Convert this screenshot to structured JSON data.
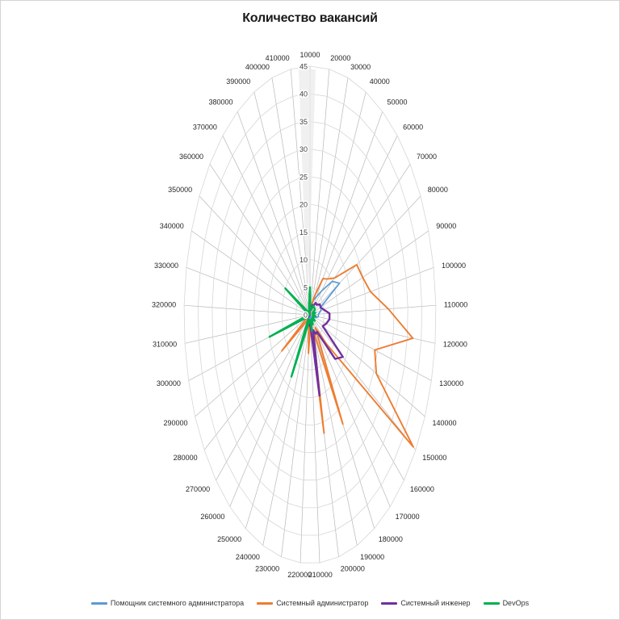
{
  "window": {
    "background": "#FFFFFF",
    "border_color": "#D4D4D4"
  },
  "chart_data": {
    "type": "radar",
    "title": "Количество вакансий",
    "grid": true,
    "legend_position": "bottom",
    "categories": [
      "10000",
      "20000",
      "30000",
      "40000",
      "50000",
      "60000",
      "70000",
      "80000",
      "90000",
      "100000",
      "110000",
      "120000",
      "130000",
      "140000",
      "150000",
      "160000",
      "170000",
      "180000",
      "190000",
      "200000",
      "210000",
      "220000",
      "230000",
      "240000",
      "250000",
      "260000",
      "270000",
      "280000",
      "290000",
      "300000",
      "310000",
      "320000",
      "330000",
      "340000",
      "350000",
      "360000",
      "370000",
      "380000",
      "390000",
      "400000",
      "410000"
    ],
    "radial_axis": {
      "min": 0,
      "max": 45,
      "step": 5,
      "tick_labels": [
        "0",
        "5",
        "10",
        "15",
        "20",
        "25",
        "30",
        "35",
        "40",
        "45"
      ]
    },
    "series": [
      {
        "name": "Помощник системного администратора",
        "color": "#5B9BD5",
        "width": 1.7,
        "values": [
          2,
          1,
          2,
          3,
          4,
          6,
          10,
          12,
          4,
          4,
          3,
          3,
          2,
          1,
          2,
          1,
          1,
          2,
          0,
          2,
          0,
          1,
          0,
          1,
          1,
          0,
          0,
          1,
          0,
          1,
          0,
          0,
          0,
          0,
          1,
          0,
          0,
          0,
          0,
          0,
          1
        ]
      },
      {
        "name": "Системный администратор",
        "color": "#ED7D31",
        "width": 1.9,
        "values": [
          2,
          1,
          2,
          4,
          8,
          9,
          11,
          19,
          20,
          22,
          28,
          37,
          24,
          26,
          44,
          8,
          3,
          23,
          3,
          22,
          2,
          7,
          2,
          2,
          6,
          1,
          2,
          12,
          1,
          2,
          1,
          1,
          0,
          1,
          2,
          0,
          1,
          0,
          0,
          1,
          1
        ]
      },
      {
        "name": "Системный инженер",
        "color": "#7030A0",
        "width": 2.4,
        "values": [
          1,
          1,
          1,
          2,
          2,
          3,
          3,
          4,
          4,
          5,
          7,
          7,
          6,
          5,
          14,
          12,
          4,
          4,
          3,
          15,
          2,
          2,
          1,
          1,
          2,
          1,
          1,
          1,
          0,
          1,
          0,
          1,
          0,
          0,
          1,
          0,
          0,
          0,
          0,
          0,
          1
        ]
      },
      {
        "name": "DevOps",
        "color": "#00B050",
        "width": 2.4,
        "values": [
          5,
          1,
          1,
          1,
          2,
          2,
          2,
          2,
          1,
          2,
          1,
          2,
          1,
          1,
          2,
          1,
          1,
          2,
          1,
          3,
          1,
          1,
          1,
          2,
          13,
          1,
          1,
          1,
          1,
          15,
          1,
          1,
          0,
          1,
          10,
          1,
          0,
          0,
          0,
          1,
          2
        ]
      }
    ],
    "grid_colors": {
      "ring": "#D6D6D6",
      "spoke": "#B8B8B8",
      "axis_shade": "#EBEBEB"
    }
  }
}
